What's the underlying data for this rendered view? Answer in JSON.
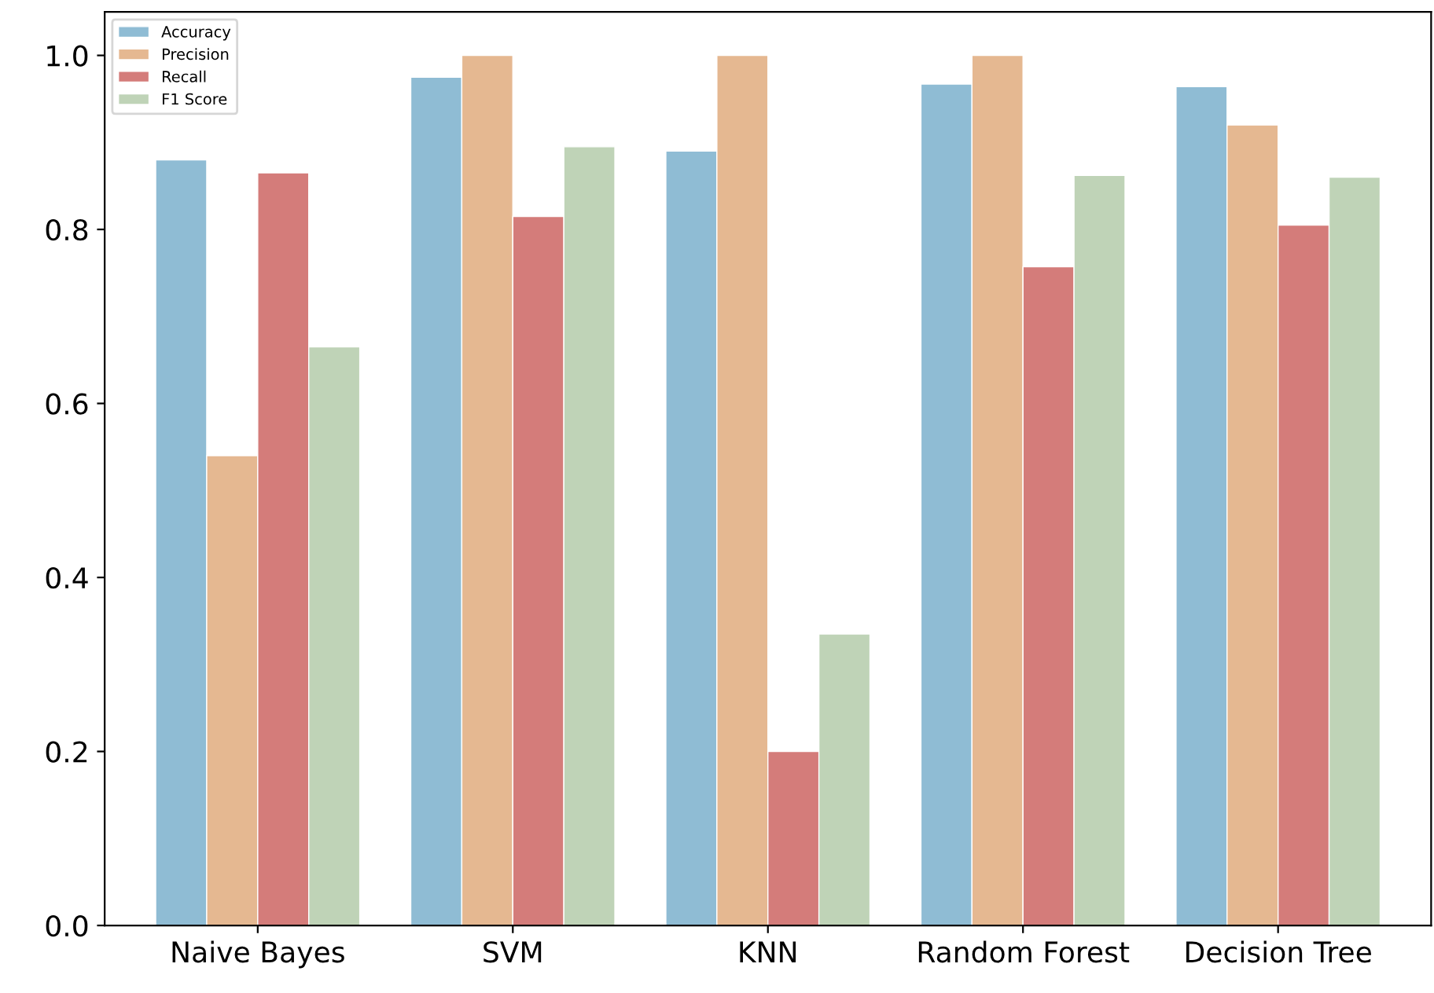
{
  "chart_data": {
    "type": "bar",
    "categories": [
      "Naive Bayes",
      "SVM",
      "KNN",
      "Random Forest",
      "Decision Tree"
    ],
    "series": [
      {
        "name": "Accuracy",
        "color": "#8fbcd4",
        "values": [
          0.88,
          0.975,
          0.89,
          0.967,
          0.964
        ]
      },
      {
        "name": "Precision",
        "color": "#e5b891",
        "values": [
          0.54,
          1.0,
          1.0,
          1.0,
          0.92
        ]
      },
      {
        "name": "Recall",
        "color": "#d47c7a",
        "values": [
          0.865,
          0.815,
          0.2,
          0.757,
          0.805
        ]
      },
      {
        "name": "F1 Score",
        "color": "#bfd3b7",
        "values": [
          0.665,
          0.895,
          0.335,
          0.862,
          0.86
        ]
      }
    ],
    "ylim": [
      0,
      1.05
    ],
    "yticks": [
      {
        "value": 0,
        "label": "0.0"
      },
      0.2,
      0.4,
      0.6,
      0.8,
      {
        "value": 1,
        "label": "1.0"
      }
    ],
    "legend": "top left",
    "grid": false
  }
}
